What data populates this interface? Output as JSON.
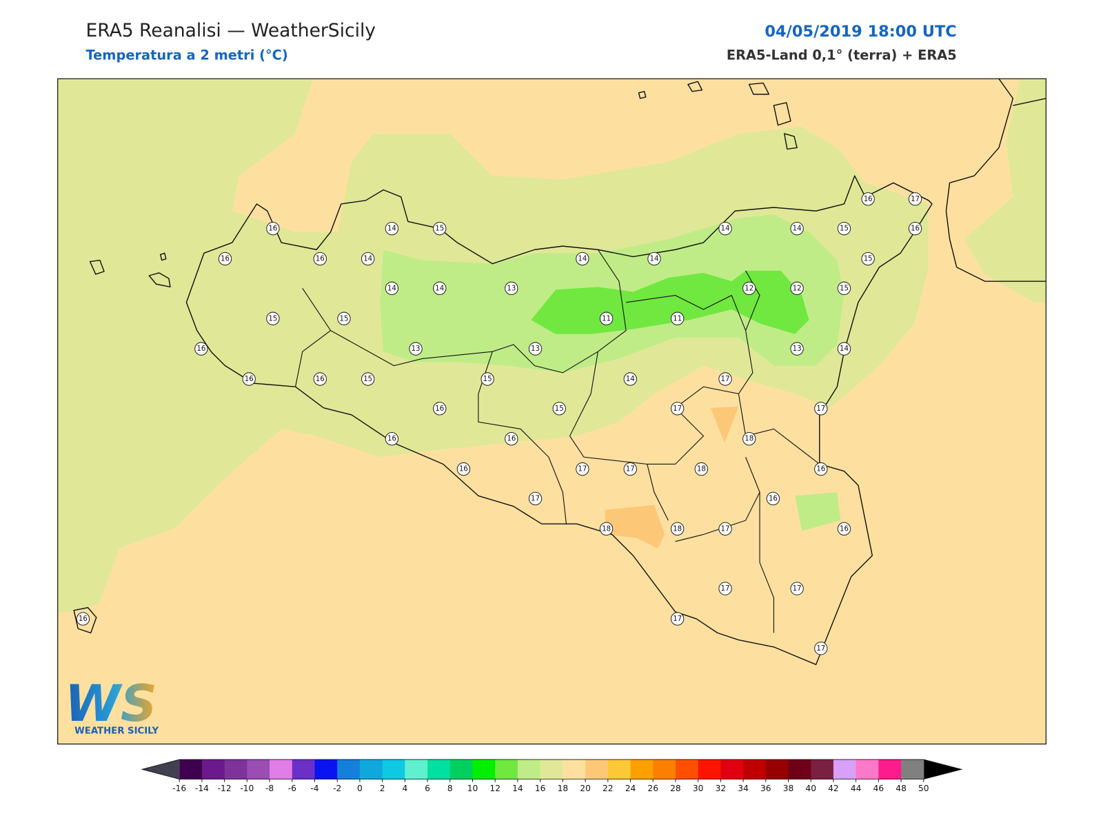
{
  "header": {
    "title": "ERA5 Reanalisi — WeatherSicily",
    "subtitle": "Temperatura a 2 metri (°C)",
    "datetime": "04/05/2019 18:00 UTC",
    "source": "ERA5-Land 0,1° (terra) + ERA5"
  },
  "stations": [
    16,
    14,
    15,
    16,
    16,
    14,
    14,
    14,
    13,
    15,
    15,
    16,
    13,
    13,
    16,
    16,
    15,
    15,
    16,
    15,
    16,
    16,
    16,
    17,
    14,
    14,
    11,
    11,
    14,
    17,
    17,
    17,
    17,
    18,
    18,
    18,
    18,
    17,
    14,
    14,
    15,
    16,
    17,
    16,
    15,
    12,
    12,
    15,
    13,
    14,
    17,
    16,
    16,
    16,
    17,
    17,
    17,
    17,
    16
  ],
  "colorbar": {
    "ticks": [
      -16,
      -14,
      -12,
      -10,
      -8,
      -6,
      -4,
      -2,
      0,
      2,
      4,
      6,
      8,
      10,
      12,
      14,
      16,
      18,
      20,
      22,
      24,
      26,
      28,
      30,
      32,
      34,
      36,
      38,
      40,
      42,
      44,
      46,
      48,
      50
    ],
    "colors": [
      "#400050",
      "#6a1a8a",
      "#7d3399",
      "#9a4db3",
      "#e07de6",
      "#6a30c8",
      "#0a14f0",
      "#1580dc",
      "#10a8dc",
      "#10c8e0",
      "#60f0d0",
      "#00e0a0",
      "#00d060",
      "#00f000",
      "#70e840",
      "#c0ec88",
      "#e0e898",
      "#fde0a0",
      "#fcc878",
      "#fcc838",
      "#fca000",
      "#fc8000",
      "#fc5000",
      "#fc1400",
      "#e00010",
      "#c00000",
      "#960000",
      "#6e0018",
      "#7a2040",
      "#d8a0f8",
      "#fc78c8",
      "#fc1c8c",
      "#808080"
    ],
    "under_color": "#404050",
    "over_color": "#000000"
  },
  "logo": {
    "mark": "WS",
    "text": "WEATHER SICILY"
  }
}
